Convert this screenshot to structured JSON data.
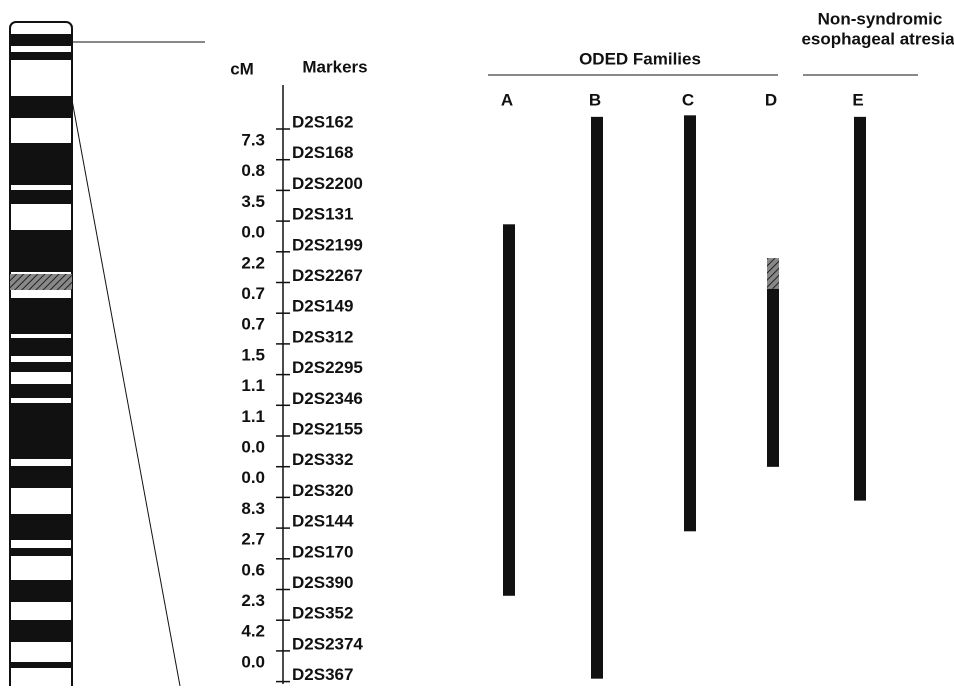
{
  "headers": {
    "cm": "cM",
    "markers": "Markers",
    "oded": "ODED Families",
    "non_syndromic": [
      "Non-syndromic",
      "esophageal atresia"
    ]
  },
  "markers": [
    "D2S162",
    "D2S168",
    "D2S2200",
    "D2S131",
    "D2S2199",
    "D2S2267",
    "D2S149",
    "D2S312",
    "D2S2295",
    "D2S2346",
    "D2S2155",
    "D2S332",
    "D2S320",
    "D2S144",
    "D2S170",
    "D2S390",
    "D2S352",
    "D2S2374",
    "D2S367"
  ],
  "cm": [
    "7.3",
    "0.8",
    "3.5",
    "0.0",
    "2.2",
    "0.7",
    "0.7",
    "1.5",
    "1.1",
    "1.1",
    "0.0",
    "0.0",
    "8.3",
    "2.7",
    "0.6",
    "2.3",
    "4.2",
    "0.0"
  ],
  "families": [
    {
      "label": "A",
      "start": 3.3,
      "end": 15.4
    },
    {
      "label": "B",
      "start": -0.2,
      "end": 18.1
    },
    {
      "label": "C",
      "start": -0.25,
      "end": 13.3
    },
    {
      "label": "D",
      "start": 4.4,
      "hatched_end": 5.4,
      "end": 11.2
    },
    {
      "label": "E",
      "start": -0.2,
      "end": 12.3
    }
  ]
}
